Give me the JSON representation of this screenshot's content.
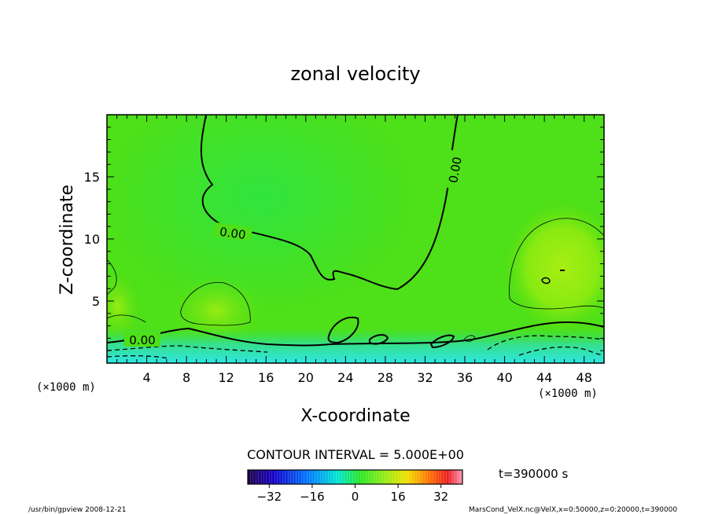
{
  "chart_data": {
    "type": "heatmap",
    "title": "zonal velocity",
    "xlabel": "X-coordinate",
    "ylabel": "Z-coordinate",
    "x_unit_note": "(×1000 m)",
    "y_unit_note": "(×1000 m)",
    "xlim": [
      0,
      50
    ],
    "ylim": [
      0,
      20
    ],
    "x_ticks": [
      4,
      8,
      12,
      16,
      20,
      24,
      28,
      32,
      36,
      40,
      44,
      48
    ],
    "y_ticks": [
      5,
      10,
      15
    ],
    "contour_interval_text": "CONTOUR INTERVAL = 5.000E+00",
    "contour_label": "0.00",
    "colorbar": {
      "min": -40,
      "max": 40,
      "ticks": [
        -32,
        -16,
        0,
        16,
        32
      ]
    },
    "time_label": "t=390000 s",
    "footer_left": "/usr/bin/gpview   2008-12-21",
    "footer_right": "MarsCond_VelX.nc@VelX,x=0:50000,z=0:20000,t=390000"
  }
}
